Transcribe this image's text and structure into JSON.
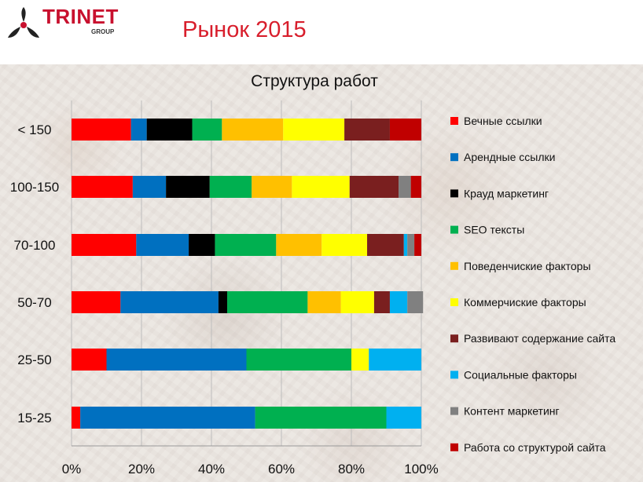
{
  "header": {
    "logo_text": "TRINET",
    "logo_sub": "GROUP",
    "slide_title": "Рынок 2015"
  },
  "colors": {
    "brand": "#c8102e",
    "title": "#d81e2c"
  },
  "chart_data": {
    "type": "bar",
    "orientation": "horizontal",
    "stacked": "percent",
    "title": "Структура работ",
    "categories": [
      "< 150",
      "100-150",
      "70-100",
      "50-70",
      "25-50",
      "15-25"
    ],
    "x_ticks": [
      "0%",
      "20%",
      "40%",
      "60%",
      "80%",
      "100%"
    ],
    "xlim": [
      0,
      100
    ],
    "legend_position": "right",
    "series": [
      {
        "name": "Вечные ссылки",
        "color": "#ff0000",
        "values": [
          17,
          17.5,
          18.5,
          14,
          10,
          2.5
        ]
      },
      {
        "name": "Арендные ссылки",
        "color": "#0070c0",
        "values": [
          4.5,
          9.5,
          15,
          28,
          40,
          50
        ]
      },
      {
        "name": "Крауд маркетинг",
        "color": "#000000",
        "values": [
          13,
          12.5,
          7.5,
          2.5,
          0,
          0
        ]
      },
      {
        "name": "SEO тексты",
        "color": "#00b050",
        "values": [
          8.5,
          12,
          17.5,
          23,
          30,
          37.5
        ]
      },
      {
        "name": "Поведенчиские факторы",
        "color": "#ffc000",
        "values": [
          17.5,
          11.5,
          13,
          9.5,
          0,
          0
        ]
      },
      {
        "name": "Коммерчиские факторы",
        "color": "#ffff00",
        "values": [
          17.5,
          16.5,
          13,
          9.5,
          5,
          0
        ]
      },
      {
        "name": "Развивают содержание сайта",
        "color": "#7a1f1f",
        "values": [
          13,
          14,
          10.5,
          4.5,
          0,
          0
        ]
      },
      {
        "name": "Социальные факторы",
        "color": "#00b0f0",
        "values": [
          0,
          0,
          1,
          5,
          15,
          10
        ]
      },
      {
        "name": "Контент маркетинг",
        "color": "#808080",
        "values": [
          0,
          3.5,
          2,
          4.5,
          0,
          0
        ]
      },
      {
        "name": "Работа со структурой сайта",
        "color": "#c00000",
        "values": [
          9,
          3,
          2,
          0,
          0,
          0
        ]
      }
    ]
  }
}
